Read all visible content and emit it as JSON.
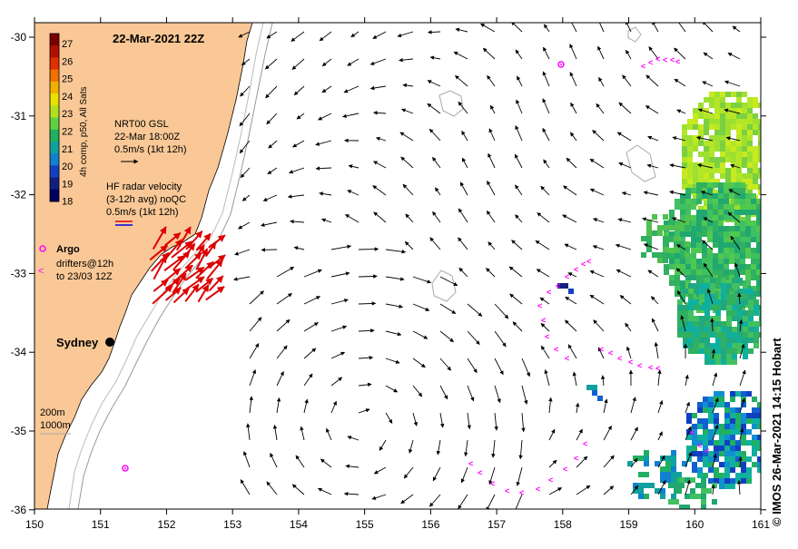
{
  "title": "22-Mar-2021 22Z",
  "credit": "© IMOS 26-Mar-2021 14:15 Hobart",
  "colorbar": {
    "label": "4h comp, p50, All Sats",
    "ticks": [
      "27",
      "26",
      "25",
      "24",
      "23",
      "22",
      "21",
      "20",
      "19",
      "18"
    ],
    "colors": [
      "#7a0000",
      "#b01000",
      "#e03000",
      "#f07000",
      "#f0b000",
      "#e8e000",
      "#b0e020",
      "#60d040",
      "#20b060",
      "#10a0a0",
      "#1080d0",
      "#1040c0",
      "#102080",
      "#000060"
    ]
  },
  "legend": {
    "gsl_title": "NRT00 GSL",
    "gsl_date": "22-Mar 18:00Z",
    "gsl_scale": "0.5m/s (1kt 12h)",
    "hf_title": "HF radar velocity",
    "hf_sub": "(3-12h avg) noQC",
    "hf_scale": "0.5m/s (1kt 12h)",
    "argo_label": "Argo",
    "drifter_line1": "drifters@12h",
    "drifter_line2": "to 23/03 12Z",
    "depth1": "200m",
    "depth2": "1000m",
    "city": "Sydney"
  },
  "axes": {
    "x_ticks": [
      "150",
      "151",
      "152",
      "153",
      "154",
      "155",
      "156",
      "157",
      "158",
      "159",
      "160",
      "161"
    ],
    "y_ticks": [
      "-30",
      "-31",
      "-32",
      "-33",
      "-34",
      "-35",
      "-36"
    ]
  },
  "colors": {
    "land": "#f9c896",
    "arrow": "#000000",
    "hf": "#dd0000",
    "argo": "#ff00ff",
    "contour": "#aaaaaa"
  }
}
